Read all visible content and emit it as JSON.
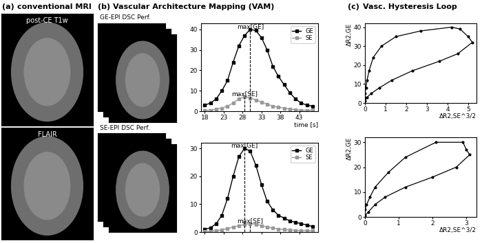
{
  "panels": {
    "a": {
      "label": "(a)",
      "title": "conventional MRI",
      "images": [
        "post-CE T1w",
        "FLAIR"
      ]
    },
    "b": {
      "label": "(b)",
      "title": "Vascular Architecture Mapping (VAM)",
      "images": [
        "GE-EPI DSC Perf.",
        "SE-EPI DSC Perf."
      ]
    },
    "c": {
      "label": "(c)",
      "title": "Vasc. Hysteresis Loop"
    }
  },
  "chart_data": [
    {
      "type": "line",
      "x_label": "time [s]",
      "x": [
        18,
        19.5,
        21,
        22.5,
        24,
        25.5,
        27,
        28.5,
        30,
        31.5,
        33,
        34.5,
        36,
        37.5,
        39,
        40.5,
        42,
        43.5,
        45,
        46.5
      ],
      "series": [
        {
          "name": "GE",
          "color": "#000000",
          "marker": "square",
          "values": [
            3,
            4,
            6,
            10,
            15,
            24,
            32,
            37,
            40,
            39.5,
            36,
            30,
            22,
            17,
            13,
            9,
            6,
            4,
            3,
            2.5
          ]
        },
        {
          "name": "SE",
          "color": "#999999",
          "marker": "square",
          "values": [
            0.5,
            0.5,
            1,
            1.5,
            2.5,
            4,
            6,
            7,
            6.5,
            5.5,
            4.5,
            3.5,
            2.5,
            2,
            1.5,
            1,
            0.8,
            0.5,
            0.5,
            0.5
          ]
        }
      ],
      "annotations": [
        "max[GE]",
        "max[SE]"
      ],
      "xlim": [
        17,
        48
      ],
      "xticks": [
        18,
        23,
        28,
        33,
        38,
        43
      ],
      "ylim": [
        0,
        43
      ],
      "yticks": [
        0,
        10,
        20,
        30,
        40
      ],
      "legend": "upper right",
      "tick_labels": true
    },
    {
      "type": "line",
      "x": [
        18,
        19.5,
        21,
        22.5,
        24,
        25.5,
        27,
        28.5,
        30,
        31.5,
        33,
        34.5,
        36,
        37.5,
        39,
        40.5,
        42,
        43.5,
        45,
        46.5
      ],
      "series": [
        {
          "name": "GE",
          "color": "#000000",
          "marker": "square",
          "values": [
            1,
            1.5,
            3,
            6,
            12,
            20,
            27,
            30,
            29,
            24,
            17,
            11,
            8,
            6,
            5,
            4,
            3.5,
            3,
            2.5,
            2
          ]
        },
        {
          "name": "SE",
          "color": "#999999",
          "marker": "square",
          "values": [
            0.3,
            0.3,
            0.5,
            0.8,
            1.2,
            1.8,
            2.3,
            2.7,
            3,
            2.8,
            2.3,
            1.8,
            1.4,
            1.1,
            0.9,
            0.7,
            0.6,
            0.5,
            0.5,
            0.5
          ]
        }
      ],
      "annotations": [
        "max[GE]",
        "max[SE]"
      ],
      "xlim": [
        17,
        48
      ],
      "xticks": [
        18,
        23,
        28,
        33,
        38,
        43
      ],
      "ylim": [
        0,
        32
      ],
      "yticks": [
        0,
        10,
        20,
        30
      ],
      "legend": "upper right",
      "tick_labels": "y"
    },
    {
      "type": "line",
      "x_label": "ΔR2,SE^3/2",
      "y_label": "ΔR2,GE",
      "color": "#000000",
      "marker": "circle",
      "x": [
        0,
        0.1,
        0.3,
        0.7,
        1.3,
        2.3,
        3.6,
        4.5,
        5.2,
        5.0,
        4.6,
        4.2,
        2.7,
        1.5,
        0.8,
        0.4,
        0.2,
        0.1,
        0.05,
        0,
        0
      ],
      "values": [
        1,
        3,
        5,
        8,
        12,
        17,
        22,
        26,
        32,
        35,
        39,
        40,
        38,
        35,
        30,
        24,
        17,
        12,
        8,
        5,
        3
      ],
      "xlim": [
        0,
        5.4
      ],
      "xticks": [
        0,
        1,
        2,
        3,
        4,
        5
      ],
      "ylim": [
        0,
        42
      ],
      "yticks": [
        0,
        10,
        20,
        30,
        40
      ]
    },
    {
      "type": "line",
      "x_label": "ΔR2,SE^3/2",
      "y_label": "ΔR2,GE",
      "color": "#000000",
      "marker": "circle",
      "x": [
        0,
        0.1,
        0.3,
        0.6,
        1.2,
        2.0,
        2.7,
        3.1,
        3.0,
        2.9,
        2.1,
        1.2,
        0.7,
        0.3,
        0.15,
        0.05,
        0
      ],
      "values": [
        0.5,
        2,
        5,
        8,
        12,
        16,
        20,
        25,
        27,
        30,
        30,
        24,
        18,
        12,
        8,
        5,
        3
      ],
      "xlim": [
        0,
        3.3
      ],
      "xticks": [
        0,
        1,
        2,
        3
      ],
      "ylim": [
        0,
        32
      ],
      "yticks": [
        0,
        10,
        20,
        30
      ]
    }
  ]
}
